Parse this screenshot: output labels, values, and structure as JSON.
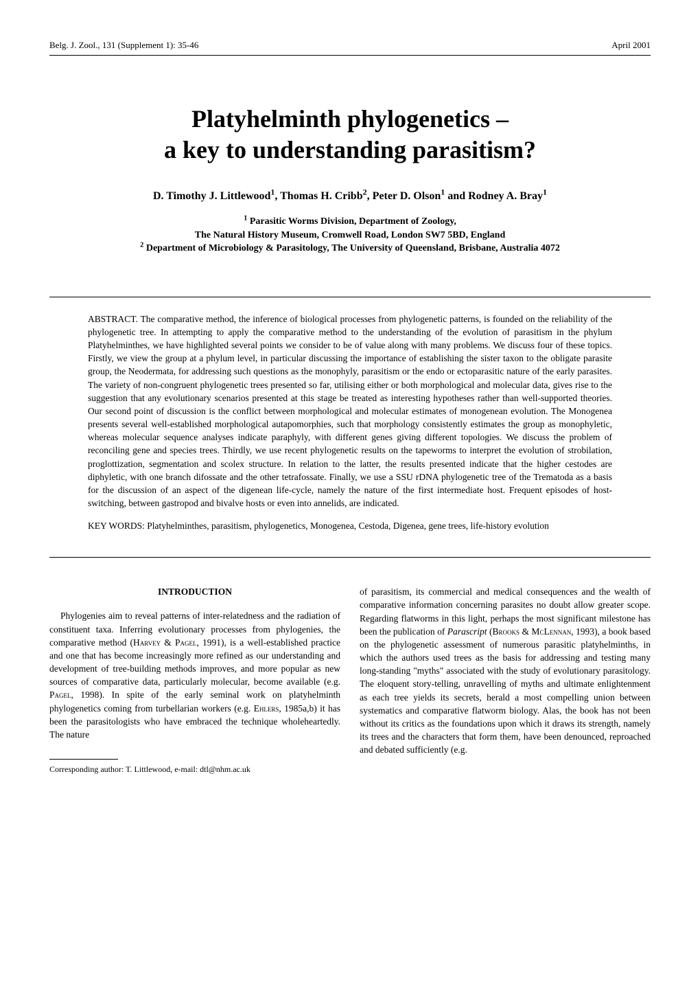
{
  "header": {
    "journal_ref": "Belg. J. Zool., 131 (Supplement 1): 35-46",
    "date": "April 2001"
  },
  "title": {
    "line1": "Platyhelminth phylogenetics –",
    "line2": "a key to understanding parasitism?"
  },
  "authors_html": "D. Timothy J. Littlewood<span class='sup'>1</span>, Thomas H. Cribb<span class='sup'>2</span>, Peter D. Olson<span class='sup'>1</span> and Rodney A. Bray<span class='sup'>1</span>",
  "affiliations": {
    "l1_html": "<span class='sup'>1</span> Parasitic Worms Division, Department of Zoology,",
    "l2": "The Natural History Museum, Cromwell Road, London SW7 5BD, England",
    "l3_html": "<span class='sup'>2</span> Department of Microbiology & Parasitology, The University of Queensland, Brisbane, Australia 4072"
  },
  "abstract": {
    "body": "ABSTRACT. The comparative method, the inference of biological processes from phylogenetic patterns, is founded on the reliability of the phylogenetic tree. In attempting to apply the comparative method to the understanding of the evolution of parasitism in the phylum Platyhelminthes, we have highlighted several points we consider to be of value along with many problems. We discuss four of these topics. Firstly, we view the group at a phylum level, in particular discussing the importance of establishing the sister taxon to the obligate parasite group, the Neodermata, for addressing such questions as the monophyly, parasitism or the endo or ectoparasitic nature of the early parasites. The variety of non-congruent phylogenetic trees presented so far, utilising either or both morphological and molecular data, gives rise to the suggestion that any evolutionary scenarios presented at this stage be treated as interesting hypotheses rather than well-supported theories. Our second point of discussion is the conflict between morphological and molecular estimates of monogenean evolution. The Monogenea presents several well-established morphological autapomorphies, such that morphology consistently estimates the group as monophyletic, whereas molecular sequence analyses indicate paraphyly, with different genes giving different topologies. We discuss the problem of reconciling gene and species trees. Thirdly, we use recent phylogenetic results on the tapeworms to interpret the evolution of strobilation, proglottization, segmentation and scolex structure. In relation to the latter, the results presented indicate that the higher cestodes are diphyletic, with one branch difossate and the other tetrafossate. Finally, we use a SSU rDNA phylogenetic tree of the Trematoda as a basis for the discussion of an aspect of the digenean life-cycle, namely the nature of the first intermediate host. Frequent episodes of host-switching, between gastropod and bivalve hosts or even into annelids, are indicated.",
    "keywords": "KEY WORDS: Platyhelminthes, parasitism, phylogenetics, Monogenea, Cestoda, Digenea, gene trees, life-history evolution"
  },
  "introduction": {
    "heading": "INTRODUCTION",
    "left_html": "Phylogenies aim to reveal patterns of inter-relatedness and the radiation of constituent taxa. Inferring evolutionary processes from phylogenies, the comparative method (H<span class='smallcaps'>arvey</span> & P<span class='smallcaps'>agel</span>, 1991), is a well-established practice and one that has become increasingly more refined as our understanding and development of tree-building methods improves, and more popular as new sources of comparative data, particularly molecular, become available (e.g. P<span class='smallcaps'>agel</span>, 1998). In spite of the early seminal work on platyhelminth phylogenetics coming from turbellarian workers (e.g. E<span class='smallcaps'>hlers</span>, 1985a,b) it has been the parasitologists who have embraced the technique wholeheartedly. The nature",
    "right_html": "of parasitism, its commercial and medical consequences and the wealth of comparative information concerning parasites no doubt allow greater scope. Regarding flatworms in this light, perhaps the most significant milestone has been the publication of <i>Parascript</i> (B<span class='smallcaps'>rooks</span> & M<span class='smallcaps'>c</span>L<span class='smallcaps'>ennan</span>, 1993), a book based on the phylogenetic assessment of numerous parasitic platyhelminths, in which the authors used trees as the basis for addressing and testing many long-standing \"myths\" associated with the study of evolutionary parasitology. The eloquent story-telling, unravelling of myths and ultimate enlightenment as each tree yields its secrets, herald a most compelling union between systematics and comparative flatworm biology. Alas, the book has not been without its critics as the foundations upon which it draws its strength, namely its trees and the characters that form them, have been denounced, reproached and debated sufficiently (e.g."
  },
  "footnote": "Corresponding author: T. Littlewood, e-mail: dtl@nhm.ac.uk"
}
